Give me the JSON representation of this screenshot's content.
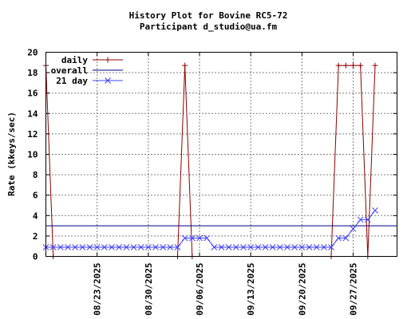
{
  "chart_data": {
    "type": "line",
    "title": "History Plot for Bovine RC5-72",
    "subtitle": "Participant d_studio@ua.fm",
    "xlabel": "",
    "ylabel": "Rate (kkeys/sec)",
    "ylim": [
      0,
      20
    ],
    "yticks": [
      0,
      2,
      4,
      6,
      8,
      10,
      12,
      14,
      16,
      18,
      20
    ],
    "x_range": [
      "2025-08-16",
      "2025-10-03"
    ],
    "xticks": [
      "08/23/2025",
      "08/30/2025",
      "09/06/2025",
      "09/13/2025",
      "09/20/2025",
      "09/27/2025"
    ],
    "grid": true,
    "legend_position": "top-left",
    "series": [
      {
        "name": "daily",
        "color": "#8b0000",
        "marker": "plus",
        "points": [
          {
            "x": "2025-08-16",
            "y": 18.7
          },
          {
            "x": "2025-08-17",
            "y": 0
          },
          {
            "x": "2025-09-03",
            "y": 0
          },
          {
            "x": "2025-09-04",
            "y": 18.7
          },
          {
            "x": "2025-09-05",
            "y": 0
          },
          {
            "x": "2025-09-24",
            "y": 0
          },
          {
            "x": "2025-09-25",
            "y": 18.7
          },
          {
            "x": "2025-09-26",
            "y": 18.7
          },
          {
            "x": "2025-09-27",
            "y": 18.7
          },
          {
            "x": "2025-09-28",
            "y": 18.7
          },
          {
            "x": "2025-09-29",
            "y": 0
          },
          {
            "x": "2025-09-30",
            "y": 18.7
          }
        ]
      },
      {
        "name": "overall",
        "color": "#000080",
        "marker": "none",
        "points": [
          {
            "x": "2025-08-16",
            "y": 3.0
          },
          {
            "x": "2025-10-03",
            "y": 3.0
          }
        ]
      },
      {
        "name": "21 day",
        "color": "#4040ff",
        "marker": "x",
        "points": [
          {
            "x": "2025-08-16",
            "y": 0.9
          },
          {
            "x": "2025-08-17",
            "y": 0.9
          },
          {
            "x": "2025-08-18",
            "y": 0.9
          },
          {
            "x": "2025-08-19",
            "y": 0.9
          },
          {
            "x": "2025-08-20",
            "y": 0.9
          },
          {
            "x": "2025-08-21",
            "y": 0.9
          },
          {
            "x": "2025-08-22",
            "y": 0.9
          },
          {
            "x": "2025-08-23",
            "y": 0.9
          },
          {
            "x": "2025-08-24",
            "y": 0.9
          },
          {
            "x": "2025-08-25",
            "y": 0.9
          },
          {
            "x": "2025-08-26",
            "y": 0.9
          },
          {
            "x": "2025-08-27",
            "y": 0.9
          },
          {
            "x": "2025-08-28",
            "y": 0.9
          },
          {
            "x": "2025-08-29",
            "y": 0.9
          },
          {
            "x": "2025-08-30",
            "y": 0.9
          },
          {
            "x": "2025-08-31",
            "y": 0.9
          },
          {
            "x": "2025-09-01",
            "y": 0.9
          },
          {
            "x": "2025-09-02",
            "y": 0.9
          },
          {
            "x": "2025-09-03",
            "y": 0.9
          },
          {
            "x": "2025-09-04",
            "y": 1.8
          },
          {
            "x": "2025-09-05",
            "y": 1.8
          },
          {
            "x": "2025-09-06",
            "y": 1.8
          },
          {
            "x": "2025-09-07",
            "y": 1.8
          },
          {
            "x": "2025-09-08",
            "y": 0.9
          },
          {
            "x": "2025-09-09",
            "y": 0.9
          },
          {
            "x": "2025-09-10",
            "y": 0.9
          },
          {
            "x": "2025-09-11",
            "y": 0.9
          },
          {
            "x": "2025-09-12",
            "y": 0.9
          },
          {
            "x": "2025-09-13",
            "y": 0.9
          },
          {
            "x": "2025-09-14",
            "y": 0.9
          },
          {
            "x": "2025-09-15",
            "y": 0.9
          },
          {
            "x": "2025-09-16",
            "y": 0.9
          },
          {
            "x": "2025-09-17",
            "y": 0.9
          },
          {
            "x": "2025-09-18",
            "y": 0.9
          },
          {
            "x": "2025-09-19",
            "y": 0.9
          },
          {
            "x": "2025-09-20",
            "y": 0.9
          },
          {
            "x": "2025-09-21",
            "y": 0.9
          },
          {
            "x": "2025-09-22",
            "y": 0.9
          },
          {
            "x": "2025-09-23",
            "y": 0.9
          },
          {
            "x": "2025-09-24",
            "y": 0.9
          },
          {
            "x": "2025-09-25",
            "y": 1.8
          },
          {
            "x": "2025-09-26",
            "y": 1.8
          },
          {
            "x": "2025-09-27",
            "y": 2.7
          },
          {
            "x": "2025-09-28",
            "y": 3.6
          },
          {
            "x": "2025-09-29",
            "y": 3.6
          },
          {
            "x": "2025-09-30",
            "y": 4.5
          }
        ]
      }
    ]
  }
}
